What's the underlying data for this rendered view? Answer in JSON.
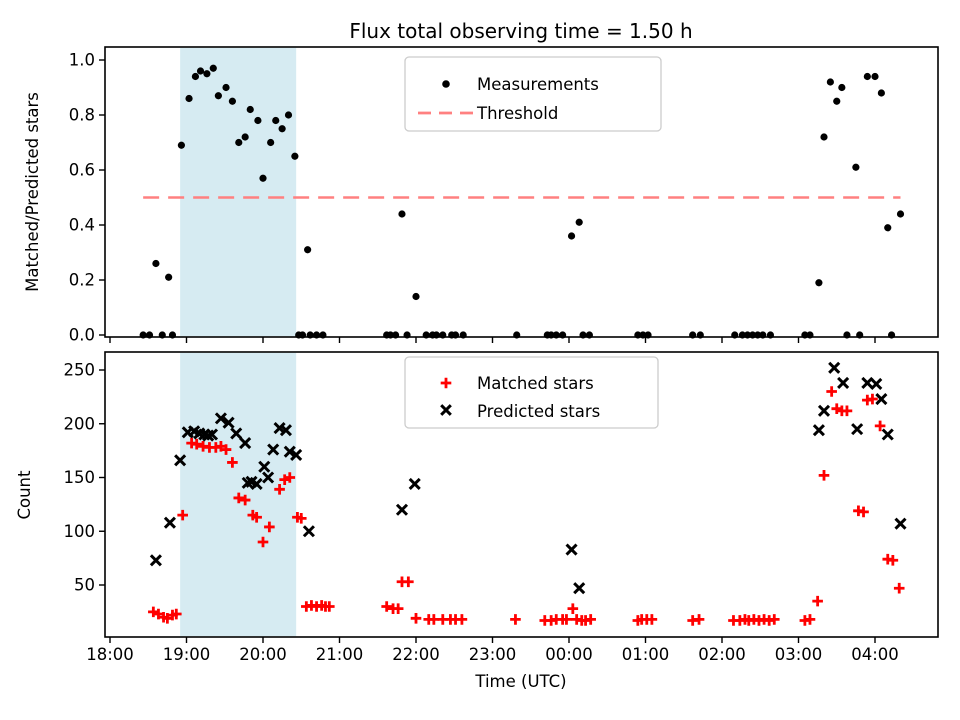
{
  "figure": {
    "title": "Flux total observing time = 1.50 h",
    "background": "#ffffff"
  },
  "colors": {
    "measurement": "#000000",
    "threshold": "#ff8080",
    "matched": "#ff0000",
    "predicted": "#000000",
    "shade": "#add8e6",
    "shade_opacity": 0.5,
    "legend_border": "#cccccc"
  },
  "observing_window": {
    "start": "18:55",
    "end": "20:26"
  },
  "x_axis": {
    "label": "Time (UTC)",
    "ticks": [
      "18:00",
      "19:00",
      "20:00",
      "21:00",
      "22:00",
      "23:00",
      "00:00",
      "01:00",
      "02:00",
      "03:00",
      "04:00"
    ]
  },
  "chart_data": [
    {
      "type": "scatter",
      "title": "Flux total observing time = 1.50 h",
      "ylabel": "Matched/Predicted stars",
      "ylim": [
        0.0,
        1.05
      ],
      "yticks": [
        0.0,
        0.2,
        0.4,
        0.6,
        0.8,
        1.0
      ],
      "grid": false,
      "legend": [
        "Measurements",
        "Threshold"
      ],
      "legend_position": "upper center",
      "threshold": 0.5,
      "series": [
        {
          "name": "Measurements",
          "marker": "dot",
          "color": "#000000",
          "points": [
            [
              "18:26",
              0.0
            ],
            [
              "18:31",
              0.0
            ],
            [
              "18:36",
              0.26
            ],
            [
              "18:41",
              0.0
            ],
            [
              "18:46",
              0.21
            ],
            [
              "18:49",
              0.0
            ],
            [
              "18:56",
              0.69
            ],
            [
              "19:02",
              0.86
            ],
            [
              "19:07",
              0.94
            ],
            [
              "19:11",
              0.96
            ],
            [
              "19:16",
              0.95
            ],
            [
              "19:21",
              0.97
            ],
            [
              "19:25",
              0.87
            ],
            [
              "19:31",
              0.9
            ],
            [
              "19:36",
              0.85
            ],
            [
              "19:41",
              0.7
            ],
            [
              "19:46",
              0.72
            ],
            [
              "19:50",
              0.82
            ],
            [
              "19:56",
              0.78
            ],
            [
              "20:00",
              0.57
            ],
            [
              "20:06",
              0.7
            ],
            [
              "20:10",
              0.78
            ],
            [
              "20:15",
              0.75
            ],
            [
              "20:20",
              0.8
            ],
            [
              "20:25",
              0.65
            ],
            [
              "20:28",
              0.0
            ],
            [
              "20:31",
              0.0
            ],
            [
              "20:35",
              0.31
            ],
            [
              "20:37",
              0.0
            ],
            [
              "20:42",
              0.0
            ],
            [
              "20:47",
              0.0
            ],
            [
              "21:37",
              0.0
            ],
            [
              "21:40",
              0.0
            ],
            [
              "21:44",
              0.0
            ],
            [
              "21:49",
              0.44
            ],
            [
              "21:53",
              0.0
            ],
            [
              "22:00",
              0.14
            ],
            [
              "22:08",
              0.0
            ],
            [
              "22:13",
              0.0
            ],
            [
              "22:16",
              0.0
            ],
            [
              "22:21",
              0.0
            ],
            [
              "22:28",
              0.0
            ],
            [
              "22:31",
              0.0
            ],
            [
              "22:37",
              0.0
            ],
            [
              "23:19",
              0.0
            ],
            [
              "23:43",
              0.0
            ],
            [
              "23:46",
              0.0
            ],
            [
              "23:50",
              0.0
            ],
            [
              "23:55",
              0.0
            ],
            [
              "00:02",
              0.36
            ],
            [
              "00:08",
              0.41
            ],
            [
              "00:11",
              0.0
            ],
            [
              "00:16",
              0.0
            ],
            [
              "00:54",
              0.0
            ],
            [
              "00:58",
              0.0
            ],
            [
              "01:02",
              0.0
            ],
            [
              "01:37",
              0.0
            ],
            [
              "01:43",
              0.0
            ],
            [
              "02:10",
              0.0
            ],
            [
              "02:16",
              0.0
            ],
            [
              "02:20",
              0.0
            ],
            [
              "02:24",
              0.0
            ],
            [
              "02:28",
              0.0
            ],
            [
              "02:32",
              0.0
            ],
            [
              "02:38",
              0.0
            ],
            [
              "03:05",
              0.0
            ],
            [
              "03:09",
              0.0
            ],
            [
              "03:16",
              0.19
            ],
            [
              "03:20",
              0.72
            ],
            [
              "03:25",
              0.92
            ],
            [
              "03:30",
              0.85
            ],
            [
              "03:34",
              0.9
            ],
            [
              "03:38",
              0.0
            ],
            [
              "03:45",
              0.61
            ],
            [
              "03:48",
              0.0
            ],
            [
              "03:54",
              0.94
            ],
            [
              "04:00",
              0.94
            ],
            [
              "04:05",
              0.88
            ],
            [
              "04:10",
              0.39
            ],
            [
              "04:13",
              0.0
            ],
            [
              "04:20",
              0.44
            ]
          ]
        }
      ]
    },
    {
      "type": "scatter",
      "ylabel": "Count",
      "xlabel": "Time (UTC)",
      "ylim": [
        0,
        267
      ],
      "yticks": [
        50,
        100,
        150,
        200,
        250
      ],
      "grid": false,
      "legend": [
        "Matched stars",
        "Predicted stars"
      ],
      "legend_position": "upper center",
      "series": [
        {
          "name": "Matched stars",
          "marker": "plus",
          "color": "#ff0000",
          "points": [
            [
              "18:34",
              25
            ],
            [
              "18:38",
              23
            ],
            [
              "18:42",
              20
            ],
            [
              "18:45",
              19
            ],
            [
              "18:49",
              22
            ],
            [
              "18:52",
              23
            ],
            [
              "18:57",
              115
            ],
            [
              "19:04",
              182
            ],
            [
              "19:08",
              181
            ],
            [
              "19:13",
              179
            ],
            [
              "19:18",
              178
            ],
            [
              "19:23",
              178
            ],
            [
              "19:27",
              179
            ],
            [
              "19:31",
              176
            ],
            [
              "19:36",
              164
            ],
            [
              "19:41",
              131
            ],
            [
              "19:46",
              129
            ],
            [
              "19:52",
              115
            ],
            [
              "19:55",
              113
            ],
            [
              "20:00",
              90
            ],
            [
              "20:05",
              104
            ],
            [
              "20:13",
              139
            ],
            [
              "20:17",
              148
            ],
            [
              "20:21",
              150
            ],
            [
              "20:27",
              113
            ],
            [
              "20:30",
              112
            ],
            [
              "20:34",
              30
            ],
            [
              "20:38",
              31
            ],
            [
              "20:42",
              30
            ],
            [
              "20:46",
              31
            ],
            [
              "20:49",
              30
            ],
            [
              "20:52",
              30
            ],
            [
              "21:37",
              30
            ],
            [
              "21:42",
              28
            ],
            [
              "21:46",
              28
            ],
            [
              "21:49",
              53
            ],
            [
              "21:54",
              53
            ],
            [
              "22:00",
              19
            ],
            [
              "22:10",
              18
            ],
            [
              "22:14",
              18
            ],
            [
              "22:21",
              18
            ],
            [
              "22:27",
              18
            ],
            [
              "22:31",
              18
            ],
            [
              "22:36",
              18
            ],
            [
              "23:18",
              18
            ],
            [
              "23:41",
              17
            ],
            [
              "23:46",
              17
            ],
            [
              "23:50",
              18
            ],
            [
              "23:55",
              18
            ],
            [
              "23:58",
              18
            ],
            [
              "00:03",
              28
            ],
            [
              "00:06",
              18
            ],
            [
              "00:10",
              17
            ],
            [
              "00:13",
              17
            ],
            [
              "00:17",
              18
            ],
            [
              "00:54",
              17
            ],
            [
              "00:57",
              18
            ],
            [
              "01:01",
              18
            ],
            [
              "01:05",
              18
            ],
            [
              "01:37",
              17
            ],
            [
              "01:42",
              18
            ],
            [
              "02:09",
              17
            ],
            [
              "02:14",
              17
            ],
            [
              "02:18",
              18
            ],
            [
              "02:21",
              17
            ],
            [
              "02:25",
              18
            ],
            [
              "02:29",
              17
            ],
            [
              "02:33",
              18
            ],
            [
              "02:37",
              17
            ],
            [
              "02:41",
              18
            ],
            [
              "03:05",
              17
            ],
            [
              "03:09",
              18
            ],
            [
              "03:15",
              35
            ],
            [
              "03:20",
              152
            ],
            [
              "03:26",
              230
            ],
            [
              "03:30",
              214
            ],
            [
              "03:34",
              212
            ],
            [
              "03:38",
              212
            ],
            [
              "03:47",
              119
            ],
            [
              "03:51",
              118
            ],
            [
              "03:54",
              222
            ],
            [
              "03:58",
              223
            ],
            [
              "04:04",
              198
            ],
            [
              "04:10",
              74
            ],
            [
              "04:14",
              73
            ],
            [
              "04:19",
              47
            ]
          ]
        },
        {
          "name": "Predicted stars",
          "marker": "x",
          "color": "#000000",
          "points": [
            [
              "18:36",
              73
            ],
            [
              "18:47",
              108
            ],
            [
              "18:55",
              166
            ],
            [
              "19:01",
              192
            ],
            [
              "19:06",
              193
            ],
            [
              "19:10",
              191
            ],
            [
              "19:14",
              190
            ],
            [
              "19:17",
              189
            ],
            [
              "19:20",
              190
            ],
            [
              "19:27",
              205
            ],
            [
              "19:33",
              201
            ],
            [
              "19:39",
              191
            ],
            [
              "19:46",
              182
            ],
            [
              "19:48",
              145
            ],
            [
              "19:51",
              146
            ],
            [
              "19:55",
              144
            ],
            [
              "20:01",
              160
            ],
            [
              "20:04",
              150
            ],
            [
              "20:08",
              176
            ],
            [
              "20:13",
              196
            ],
            [
              "20:18",
              194
            ],
            [
              "20:21",
              174
            ],
            [
              "20:26",
              171
            ],
            [
              "20:36",
              100
            ],
            [
              "21:49",
              120
            ],
            [
              "21:59",
              144
            ],
            [
              "00:02",
              83
            ],
            [
              "00:08",
              47
            ],
            [
              "03:16",
              194
            ],
            [
              "03:20",
              212
            ],
            [
              "03:28",
              252
            ],
            [
              "03:35",
              238
            ],
            [
              "03:46",
              195
            ],
            [
              "03:54",
              238
            ],
            [
              "04:01",
              237
            ],
            [
              "04:05",
              223
            ],
            [
              "04:10",
              190
            ],
            [
              "04:20",
              107
            ]
          ]
        }
      ]
    }
  ]
}
